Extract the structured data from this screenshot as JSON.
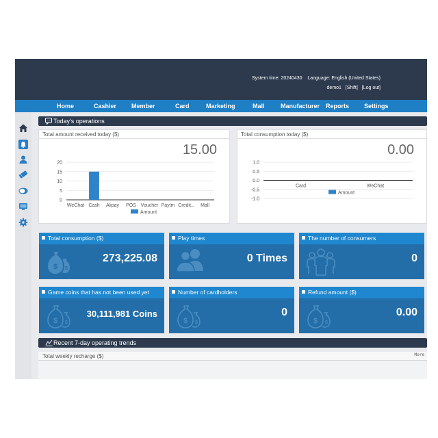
{
  "header": {
    "system_time_label": "System time:",
    "system_time": "20240430",
    "language_label": "Language:",
    "language": "English (United States)",
    "username": "demo1",
    "shift_label": "[Shift]",
    "logout_label": "[Log out]"
  },
  "nav": {
    "items": [
      {
        "label": "Home"
      },
      {
        "label": "Cashier"
      },
      {
        "label": "Member"
      },
      {
        "label": "Card"
      },
      {
        "label": "Marketing"
      },
      {
        "label": "Mall"
      },
      {
        "label": "Manufacturer"
      },
      {
        "label": "Reports"
      },
      {
        "label": "Settings"
      }
    ]
  },
  "sidebar": {
    "icons": [
      "home-icon",
      "bell-icon",
      "user-icon",
      "ticket-icon",
      "coins-icon",
      "monitor-icon",
      "gear-icon"
    ]
  },
  "today": {
    "title": "Today's operations",
    "received": {
      "title": "Total amount received today ($)",
      "value": "15.00",
      "legend": "Amount"
    },
    "consumption": {
      "title": "Total consumption today ($)",
      "value": "0.00",
      "legend": "Amount"
    }
  },
  "chart_data": [
    {
      "type": "bar",
      "categories": [
        "WeChat",
        "Cash",
        "Alipay",
        "POS",
        "Voucher",
        "Paytm",
        "Credit...",
        "Mall"
      ],
      "series": [
        {
          "name": "Amount",
          "values": [
            0,
            15,
            0,
            0,
            0,
            0,
            0,
            0
          ]
        }
      ],
      "ylim": [
        0,
        20
      ],
      "yticks": [
        "0",
        "5",
        "10",
        "15",
        "20"
      ],
      "grid": true,
      "legend": "bottom",
      "color": "#2f83c8"
    },
    {
      "type": "bar",
      "categories": [
        "Card",
        "WeChat"
      ],
      "series": [
        {
          "name": "Amount",
          "values": [
            0,
            0
          ]
        }
      ],
      "ylim": [
        -1.0,
        1.0
      ],
      "yticks": [
        "-1.0",
        "-0.5",
        "0.0",
        "0.5",
        "1.0"
      ],
      "grid": true,
      "legend": "bottom",
      "color": "#2f83c8"
    }
  ],
  "stats": [
    {
      "title": "Total consumption ($)",
      "value": "273,225.08",
      "icon": "money-bag-icon"
    },
    {
      "title": "Play times",
      "value": "0 Times",
      "icon": "people-icon"
    },
    {
      "title": "The number of consumers",
      "value": "0",
      "icon": "group-icon"
    },
    {
      "title": "Game coins that has not been used yet",
      "value": "30,111,981 Coins",
      "icon": "money-bag-icon"
    },
    {
      "title": "Number of cardholders",
      "value": "0",
      "icon": "money-bag-icon"
    },
    {
      "title": "Refund amount ($)",
      "value": "0.00",
      "icon": "money-bag-icon"
    }
  ],
  "trends": {
    "title": "Recent 7-day operating trends",
    "weekly_title": "Total weekly recharge ($)",
    "more_label": "More"
  },
  "colors": {
    "header_bg": "#2d3a4e",
    "nav_bg": "#1e7fc5",
    "card_bg": "#236ea8",
    "card_title_bg": "#1e87cf",
    "bar": "#2f83c8"
  }
}
